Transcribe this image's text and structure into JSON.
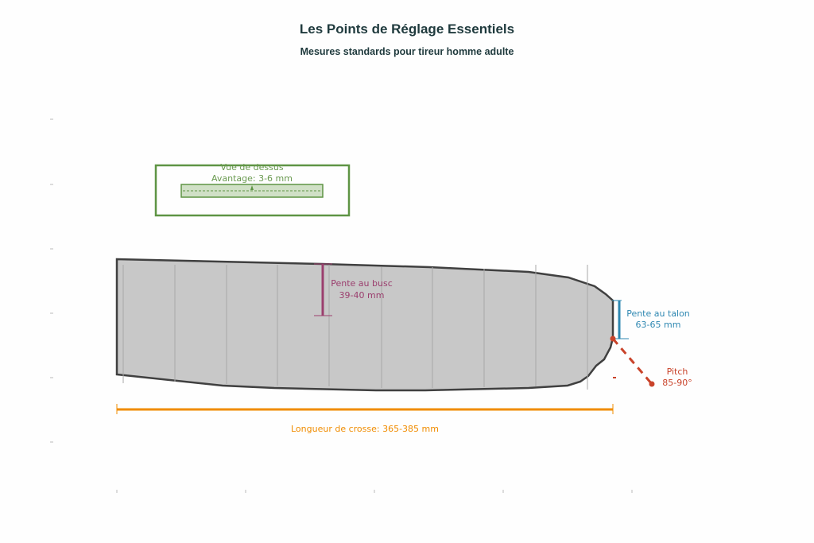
{
  "title": "Les Points de Réglage Essentiels",
  "subtitle": "Mesures standards pour tireur homme adulte",
  "top_view": {
    "label": "Vue de dessus",
    "value": "Avantage: 3-6 mm",
    "color": "#5e9444"
  },
  "busc": {
    "label": "Pente au busc",
    "value": "39-40 mm",
    "color": "#9b3f6e"
  },
  "talon": {
    "label": "Pente au talon",
    "value": "63-65 mm",
    "color": "#2f88b2"
  },
  "pitch": {
    "label": "Pitch",
    "value": "85-90°",
    "color": "#c9432a"
  },
  "length": {
    "label": "Longueur de crosse: 365-385 mm",
    "color": "#f08c00"
  },
  "stock": {
    "fill": "#c8c8c8",
    "stroke": "#404040"
  }
}
